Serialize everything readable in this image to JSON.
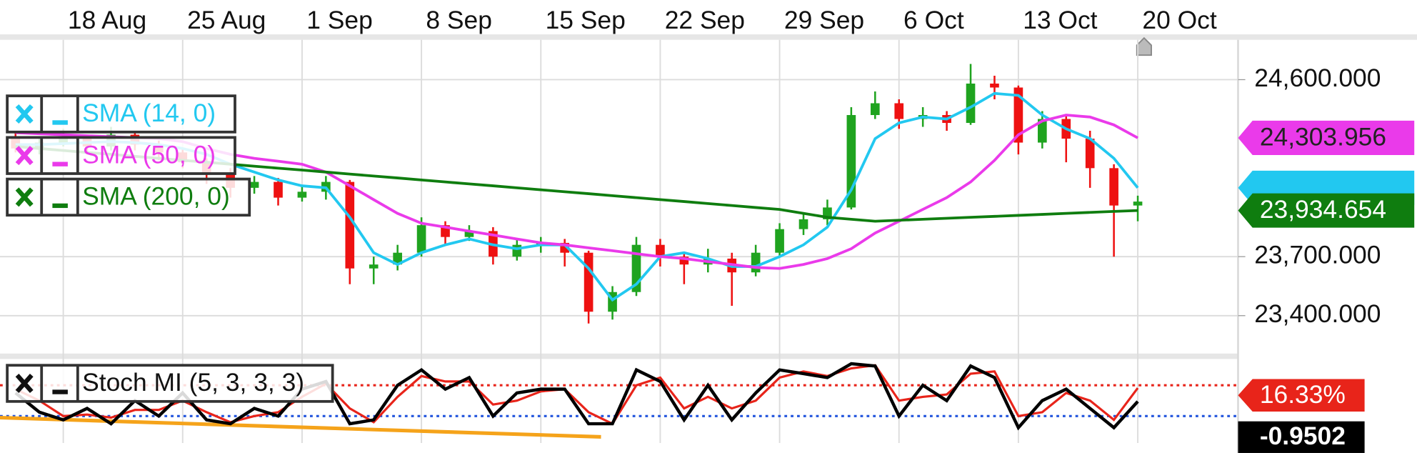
{
  "chart_data": [
    {
      "type": "candlestick",
      "x": [
        -2,
        -1,
        0,
        1,
        2,
        3,
        4,
        5,
        6,
        7,
        8,
        9,
        10,
        11,
        12,
        13,
        14,
        15,
        16,
        17,
        18,
        19,
        20,
        21,
        22,
        23,
        24,
        25,
        26,
        27,
        28,
        29,
        30,
        31,
        32,
        33,
        34,
        35,
        36,
        37,
        38,
        39,
        40,
        41,
        42,
        43,
        44,
        45
      ],
      "open": [
        24300,
        24250,
        24280,
        24300,
        24260,
        24320,
        24270,
        24230,
        24180,
        24120,
        24050,
        24080,
        24000,
        24030,
        24080,
        23640,
        23660,
        23720,
        23860,
        23800,
        23830,
        23700,
        23760,
        23770,
        23720,
        23420,
        23520,
        23760,
        23700,
        23660,
        23690,
        23620,
        23720,
        23840,
        23890,
        23950,
        24420,
        24480,
        24400,
        24420,
        24380,
        24580,
        24560,
        24280,
        24400,
        24300,
        24150,
        23960
      ],
      "high": [
        24330,
        24310,
        24350,
        24320,
        24360,
        24340,
        24290,
        24250,
        24200,
        24150,
        24110,
        24100,
        24060,
        24110,
        24090,
        23700,
        23760,
        23900,
        23880,
        23860,
        23850,
        23790,
        23800,
        23790,
        23730,
        23550,
        23800,
        23790,
        23720,
        23740,
        23720,
        23760,
        23870,
        23920,
        23990,
        24460,
        24540,
        24500,
        24460,
        24440,
        24680,
        24620,
        24570,
        24440,
        24420,
        24340,
        24170,
        24010
      ],
      "low": [
        24230,
        24220,
        24260,
        24220,
        24240,
        24240,
        24190,
        24150,
        24070,
        24000,
        24020,
        23960,
        23980,
        23990,
        23560,
        23560,
        23630,
        23700,
        23760,
        23780,
        23660,
        23680,
        23720,
        23650,
        23360,
        23380,
        23500,
        23650,
        23560,
        23620,
        23450,
        23600,
        23700,
        23810,
        23860,
        23940,
        24400,
        24350,
        24360,
        24340,
        24370,
        24500,
        24220,
        24250,
        24180,
        24050,
        23700,
        23880
      ],
      "close": [
        24250,
        24280,
        24300,
        24260,
        24320,
        24270,
        24230,
        24180,
        24120,
        24050,
        24080,
        24000,
        24030,
        24080,
        23640,
        23660,
        23720,
        23860,
        23800,
        23830,
        23700,
        23760,
        23770,
        23720,
        23420,
        23520,
        23760,
        23700,
        23660,
        23690,
        23620,
        23720,
        23840,
        23890,
        23950,
        24420,
        24480,
        24400,
        24420,
        24380,
        24580,
        24560,
        24280,
        24400,
        24300,
        24150,
        23960,
        23980
      ],
      "up_color": "#1fa31f",
      "down_color": "#ee1111",
      "series": [
        {
          "name": "SMA (14, 0)",
          "color": "#22c8f0",
          "values": [
            24270,
            24270,
            24275,
            24280,
            24285,
            24280,
            24270,
            24250,
            24220,
            24170,
            24130,
            24090,
            24060,
            24050,
            23900,
            23720,
            23660,
            23720,
            23760,
            23790,
            23760,
            23740,
            23760,
            23760,
            23640,
            23480,
            23560,
            23700,
            23720,
            23690,
            23650,
            23650,
            23700,
            23760,
            23850,
            24040,
            24300,
            24380,
            24410,
            24400,
            24460,
            24530,
            24520,
            24420,
            24350,
            24300,
            24200,
            24050
          ]
        },
        {
          "name": "SMA (50, 0)",
          "color": "#ea3aea",
          "last_label": "24,303.956",
          "values": [
            24330,
            24325,
            24320,
            24315,
            24310,
            24305,
            24300,
            24285,
            24250,
            24220,
            24200,
            24185,
            24170,
            24130,
            24060,
            23990,
            23920,
            23870,
            23850,
            23830,
            23810,
            23790,
            23770,
            23760,
            23745,
            23730,
            23715,
            23700,
            23690,
            23675,
            23660,
            23645,
            23640,
            23660,
            23690,
            23740,
            23820,
            23880,
            23940,
            24000,
            24080,
            24190,
            24320,
            24390,
            24420,
            24410,
            24370,
            24303.956
          ]
        },
        {
          "name": "SMA (200, 0)",
          "color": "#0f7d0f",
          "last_label": "23,934.654",
          "values": [
            24260,
            24250,
            24240,
            24230,
            24220,
            24210,
            24200,
            24190,
            24180,
            24170,
            24160,
            24150,
            24140,
            24130,
            24120,
            24110,
            24100,
            24090,
            24080,
            24070,
            24060,
            24050,
            24040,
            24030,
            24020,
            24010,
            24000,
            23990,
            23980,
            23970,
            23960,
            23950,
            23940,
            23920,
            23900,
            23890,
            23880,
            23885,
            23890,
            23895,
            23900,
            23905,
            23910,
            23915,
            23920,
            23925,
            23930,
            23934.654
          ]
        }
      ],
      "xlim": [
        -2.65,
        49.2
      ],
      "xticks": [
        {
          "value": 0,
          "label": "18 Aug"
        },
        {
          "value": 5,
          "label": "25 Aug"
        },
        {
          "value": 10,
          "label": "1 Sep"
        },
        {
          "value": 15,
          "label": "8 Sep"
        },
        {
          "value": 20,
          "label": "15 Sep"
        },
        {
          "value": 25,
          "label": "22 Sep"
        },
        {
          "value": 30,
          "label": "29 Sep"
        },
        {
          "value": 35,
          "label": "6 Oct"
        },
        {
          "value": 40,
          "label": "13 Oct"
        },
        {
          "value": 45,
          "label": "20 Oct"
        }
      ],
      "ylim": [
        23212,
        24798
      ],
      "yticks": [
        {
          "value": 24600,
          "label": "24,600.000"
        },
        {
          "value": 23700,
          "label": "23,700.000"
        },
        {
          "value": 23400,
          "label": "23,400.000"
        }
      ],
      "grid": true
    },
    {
      "type": "line",
      "name": "Stoch MI (5, 3, 3, 3)",
      "x": [
        -2,
        -1,
        0,
        1,
        2,
        3,
        4,
        5,
        6,
        7,
        8,
        9,
        10,
        11,
        12,
        13,
        14,
        15,
        16,
        17,
        18,
        19,
        20,
        21,
        22,
        23,
        24,
        25,
        26,
        27,
        28,
        29,
        30,
        31,
        32,
        33,
        34,
        35,
        36,
        37,
        38,
        39,
        40,
        41,
        42,
        43,
        44,
        45
      ],
      "series": [
        {
          "color": "#000000",
          "last_label": "-0.9502",
          "values": [
            10,
            -15,
            -25,
            -10,
            -30,
            0,
            -20,
            10,
            -25,
            -30,
            -10,
            -20,
            15,
            25,
            -30,
            -25,
            20,
            40,
            15,
            30,
            -20,
            10,
            15,
            15,
            -30,
            -30,
            40,
            25,
            -25,
            20,
            -25,
            10,
            40,
            35,
            30,
            48,
            45,
            -20,
            20,
            0,
            45,
            30,
            -35,
            0,
            15,
            -10,
            -35,
            -0.9502
          ]
        },
        {
          "color": "#e8241a",
          "last_label": "16.33%",
          "values": [
            15,
            0,
            -20,
            -18,
            -22,
            -12,
            -12,
            0,
            -15,
            -28,
            -20,
            -15,
            5,
            22,
            -10,
            -28,
            5,
            32,
            25,
            25,
            -5,
            0,
            12,
            15,
            -15,
            -30,
            20,
            30,
            -10,
            5,
            -10,
            0,
            30,
            38,
            32,
            42,
            46,
            0,
            5,
            8,
            35,
            38,
            -20,
            -15,
            10,
            0,
            -25,
            16.33
          ]
        }
      ],
      "levels": [
        {
          "value": 20,
          "color": "#e8241a"
        },
        {
          "value": -20,
          "color": "#2255dd"
        }
      ],
      "trendline": {
        "color": "#f5a31a",
        "x": [
          -2.65,
          22.52
        ],
        "y": [
          -22,
          -47
        ]
      },
      "xlim": [
        -2.65,
        49.2
      ],
      "ylim": [
        -55,
        53
      ]
    }
  ]
}
